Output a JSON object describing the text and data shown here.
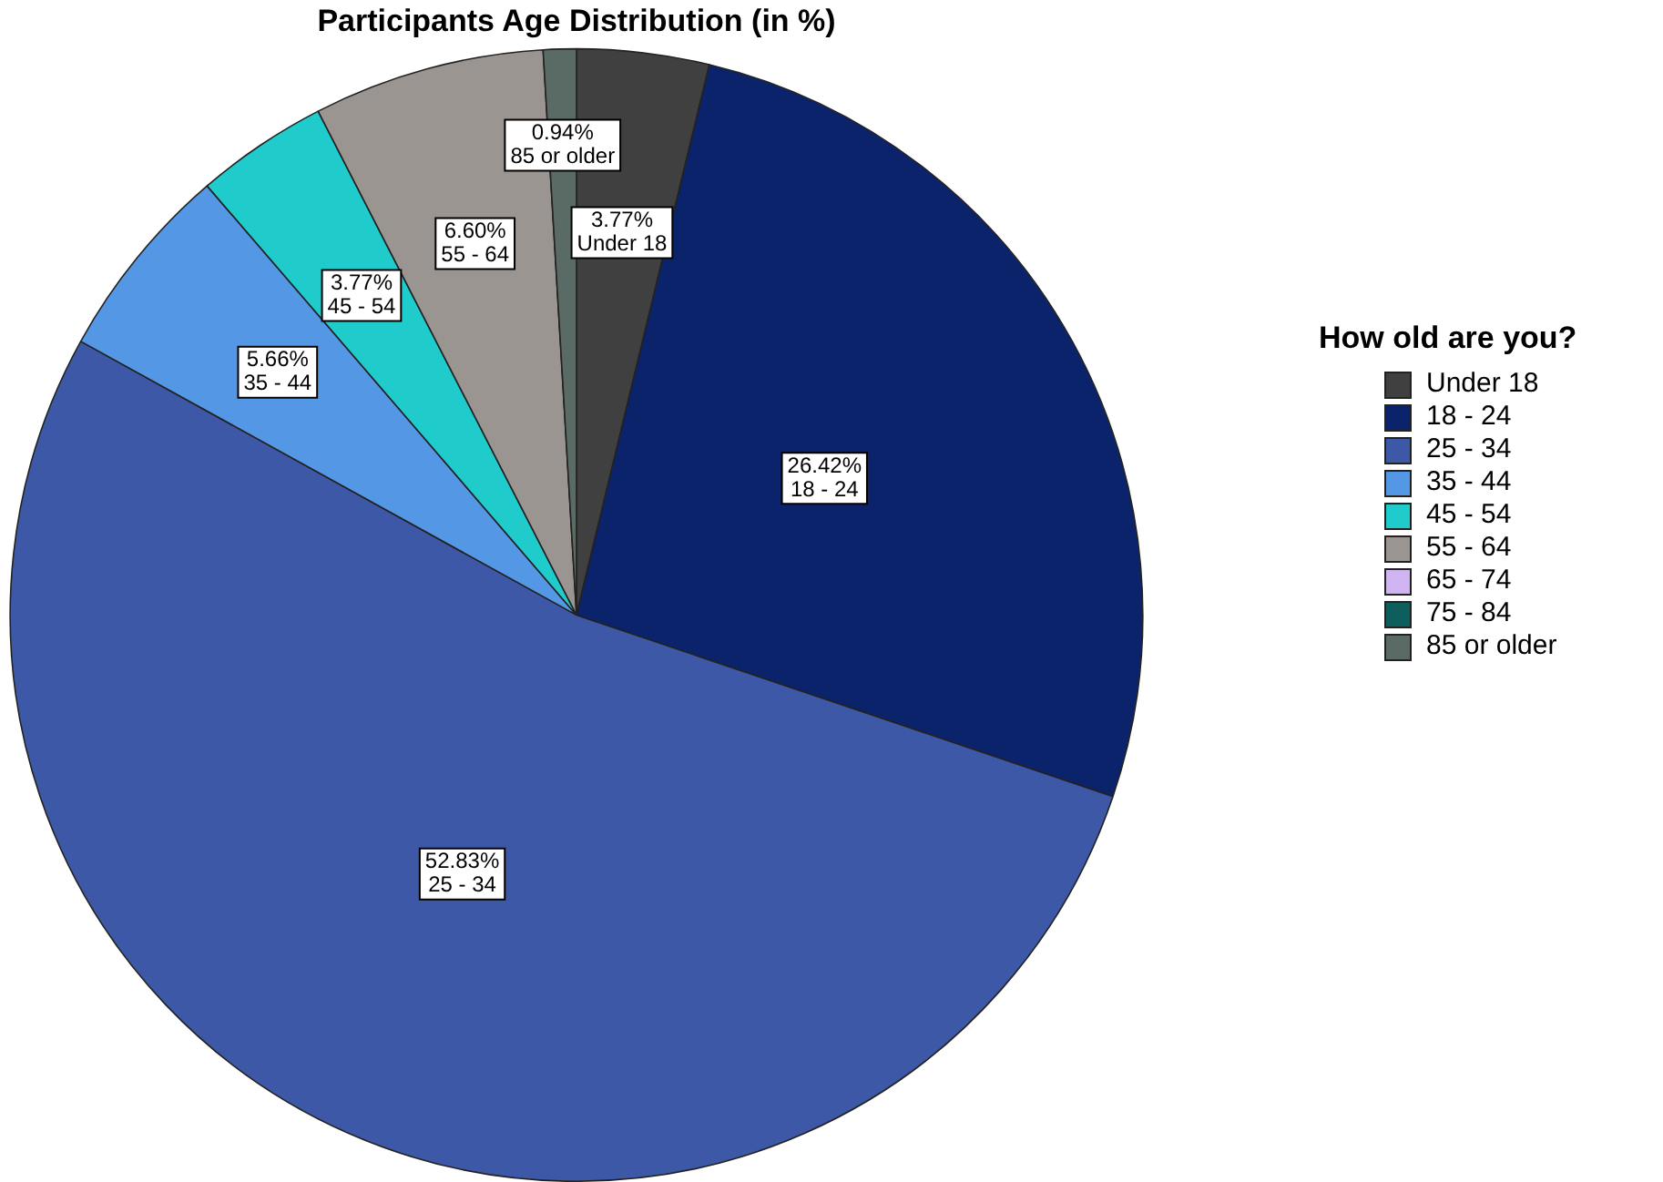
{
  "chart_data": {
    "type": "pie",
    "title": "Participants Age Distribution (in %)",
    "legend_title": "How old are you?",
    "legend": "right",
    "categories": [
      "Under 18",
      "18 - 24",
      "25 - 34",
      "35 - 44",
      "45 - 54",
      "55 - 64",
      "65 - 74",
      "75 - 84",
      "85 or older"
    ],
    "values": [
      3.77,
      26.42,
      52.83,
      5.66,
      3.77,
      6.6,
      0,
      0,
      0.94
    ],
    "colors": [
      "#404040",
      "#0b236b",
      "#3d58a7",
      "#5497e5",
      "#1fcbcb",
      "#9b9591",
      "#d0b4f2",
      "#0e5e5e",
      "#5a6a64"
    ],
    "value_labels": [
      "3.77%",
      "26.42%",
      "52.83%",
      "5.66%",
      "3.77%",
      "6.60%",
      null,
      null,
      "0.94%"
    ]
  }
}
